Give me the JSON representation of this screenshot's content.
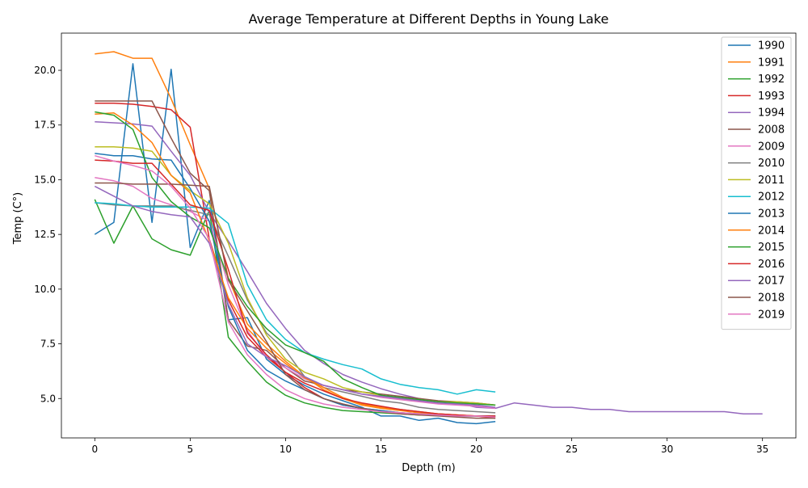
{
  "chart_data": {
    "type": "line",
    "title": "Average Temperature at Different Depths in Young Lake",
    "xlabel": "Depth (m)",
    "ylabel": "Temp (C°)",
    "xlim": [
      -1.75,
      36.75
    ],
    "ylim": [
      3.2,
      21.7
    ],
    "xticks": [
      0,
      5,
      10,
      15,
      20,
      25,
      30,
      35
    ],
    "yticks": [
      5.0,
      7.5,
      10.0,
      12.5,
      15.0,
      17.5,
      20.0
    ],
    "grid": false,
    "legend_position": "top-right",
    "series": [
      {
        "name": "1990",
        "color": "#1f77b4",
        "x": [
          0,
          1,
          2,
          3,
          4,
          5,
          6,
          7,
          8,
          9,
          10,
          11,
          12,
          13,
          14,
          15,
          16,
          17,
          18,
          19,
          20,
          21
        ],
        "y": [
          12.5,
          13.05,
          20.3,
          13.05,
          20.05,
          11.9,
          14.05,
          8.6,
          8.7,
          6.8,
          6.1,
          5.6,
          5.2,
          4.9,
          4.6,
          4.2,
          4.2,
          4.0,
          4.1,
          3.9,
          3.85,
          3.95
        ]
      },
      {
        "name": "1991",
        "color": "#ff7f0e",
        "x": [
          0,
          1,
          2,
          3,
          4,
          5,
          6,
          7,
          8,
          9,
          10,
          11,
          12,
          13,
          14,
          15,
          16,
          17,
          18,
          19,
          20,
          21
        ],
        "y": [
          20.75,
          20.85,
          20.55,
          20.55,
          18.7,
          16.6,
          14.6,
          10.5,
          8.4,
          7.5,
          6.7,
          6.0,
          5.4,
          5.0,
          4.7,
          4.55,
          4.45,
          4.35,
          4.3,
          4.25,
          4.2,
          4.2
        ]
      },
      {
        "name": "1992",
        "color": "#2ca02c",
        "x": [
          0,
          1,
          2,
          3,
          4,
          5,
          6,
          7,
          8,
          9,
          10,
          11,
          12,
          13,
          14,
          15,
          16,
          17,
          18,
          19,
          20,
          21
        ],
        "y": [
          14.1,
          12.1,
          13.8,
          12.3,
          11.8,
          11.55,
          13.6,
          7.8,
          6.7,
          5.75,
          5.15,
          4.8,
          4.6,
          4.45,
          4.4,
          4.35,
          4.3,
          4.25,
          4.25,
          4.2,
          4.2,
          4.2
        ]
      },
      {
        "name": "1993",
        "color": "#d62728",
        "x": [
          0,
          1,
          2,
          3,
          4,
          5,
          6,
          7,
          8,
          9,
          10,
          11,
          12,
          13,
          14,
          15,
          16,
          17,
          18,
          19,
          20,
          21
        ],
        "y": [
          18.5,
          18.5,
          18.45,
          18.35,
          18.2,
          17.4,
          12.3,
          9.5,
          7.8,
          6.9,
          6.2,
          5.5,
          5.0,
          4.7,
          4.55,
          4.45,
          4.35,
          4.3,
          4.25,
          4.2,
          4.2,
          4.1
        ]
      },
      {
        "name": "1994",
        "color": "#9467bd",
        "x": [
          0,
          1,
          2,
          3,
          4,
          5,
          6,
          7,
          8,
          9,
          10,
          11,
          12,
          13,
          14,
          15,
          16,
          17,
          18,
          19,
          20,
          21,
          22,
          23,
          24,
          25,
          26,
          27,
          28,
          29,
          30,
          31,
          32,
          33,
          34,
          35
        ],
        "y": [
          17.65,
          17.6,
          17.55,
          17.45,
          16.3,
          15.2,
          13.5,
          12.2,
          10.8,
          9.35,
          8.2,
          7.2,
          6.6,
          6.1,
          5.75,
          5.45,
          5.2,
          5.0,
          4.85,
          4.8,
          4.6,
          4.55,
          4.8,
          4.7,
          4.6,
          4.6,
          4.5,
          4.5,
          4.4,
          4.4,
          4.4,
          4.4,
          4.4,
          4.4,
          4.3,
          4.3
        ]
      },
      {
        "name": "2008",
        "color": "#8c564b",
        "x": [
          0,
          1,
          2,
          3,
          4,
          5,
          6,
          7,
          8,
          9,
          10,
          11,
          12,
          13,
          14,
          15,
          16,
          17,
          18,
          19,
          20,
          21
        ],
        "y": [
          18.6,
          18.6,
          18.6,
          18.6,
          16.9,
          15.3,
          14.5,
          8.6,
          7.4,
          7.2,
          6.4,
          5.8,
          5.6,
          5.4,
          5.3,
          5.2,
          5.1,
          5.0,
          4.9,
          4.85,
          4.8,
          4.7
        ]
      },
      {
        "name": "2009",
        "color": "#e377c2",
        "x": [
          0,
          1,
          2,
          3,
          4,
          5,
          6,
          7,
          8,
          9,
          10,
          11,
          12,
          13,
          14,
          15,
          16,
          17,
          18,
          19,
          20,
          21
        ],
        "y": [
          15.1,
          14.95,
          14.7,
          14.15,
          13.85,
          13.55,
          13.1,
          10.2,
          8.1,
          6.9,
          6.4,
          5.9,
          5.6,
          5.4,
          5.2,
          5.05,
          4.95,
          4.85,
          4.75,
          4.7,
          4.65,
          4.55
        ]
      },
      {
        "name": "2010",
        "color": "#7f7f7f",
        "x": [
          0,
          1,
          2,
          3,
          4,
          5,
          6,
          7,
          8,
          9,
          10,
          11,
          12,
          13,
          14,
          15,
          16,
          17,
          18,
          19,
          20,
          21
        ],
        "y": [
          13.95,
          13.85,
          13.8,
          13.8,
          13.8,
          13.6,
          13.4,
          11.5,
          9.5,
          8.0,
          7.2,
          6.0,
          5.5,
          5.3,
          5.1,
          4.9,
          4.8,
          4.6,
          4.5,
          4.45,
          4.4,
          4.35
        ]
      },
      {
        "name": "2011",
        "color": "#bcbd22",
        "x": [
          0,
          1,
          2,
          3,
          4,
          5,
          6,
          7,
          8,
          9,
          10,
          11,
          12,
          13,
          14,
          15,
          16,
          17,
          18,
          19,
          20,
          21
        ],
        "y": [
          16.5,
          16.5,
          16.45,
          16.3,
          15.2,
          14.5,
          13.9,
          12.1,
          9.6,
          7.9,
          6.8,
          6.2,
          5.9,
          5.5,
          5.3,
          5.15,
          5.0,
          4.95,
          4.85,
          4.85,
          4.8,
          4.7
        ]
      },
      {
        "name": "2012",
        "color": "#17becf",
        "x": [
          0,
          1,
          2,
          3,
          4,
          5,
          6,
          7,
          8,
          9,
          10,
          11,
          12,
          13,
          14,
          15,
          16,
          17,
          18,
          19,
          20,
          21
        ],
        "y": [
          13.95,
          13.9,
          13.8,
          13.75,
          13.75,
          13.75,
          13.7,
          13.0,
          10.2,
          8.6,
          7.7,
          7.1,
          6.8,
          6.55,
          6.35,
          5.9,
          5.65,
          5.5,
          5.4,
          5.2,
          5.4,
          5.3
        ]
      },
      {
        "name": "2013",
        "color": "#1f77b4",
        "x": [
          0,
          1,
          2,
          3,
          4,
          5,
          6,
          7,
          8,
          9,
          10,
          11,
          12,
          13,
          14,
          15,
          16,
          17,
          18,
          19,
          20,
          21
        ],
        "y": [
          16.2,
          16.1,
          16.1,
          15.95,
          15.9,
          14.6,
          13.1,
          9.2,
          7.2,
          6.3,
          5.8,
          5.4,
          5.0,
          4.7,
          4.55,
          4.45,
          4.35,
          4.3,
          4.25,
          4.2,
          4.2,
          4.2
        ]
      },
      {
        "name": "2014",
        "color": "#ff7f0e",
        "x": [
          0,
          1,
          2,
          3,
          4,
          5,
          6,
          7,
          8,
          9,
          10,
          11,
          12,
          13,
          14,
          15,
          16,
          17,
          18,
          19,
          20,
          21
        ],
        "y": [
          18.0,
          18.05,
          17.5,
          16.7,
          15.2,
          14.4,
          12.2,
          9.6,
          8.2,
          7.3,
          6.6,
          5.95,
          5.5,
          5.05,
          4.75,
          4.6,
          4.5,
          4.4,
          4.3,
          4.25,
          4.2,
          4.15
        ]
      },
      {
        "name": "2015",
        "color": "#2ca02c",
        "x": [
          0,
          1,
          2,
          3,
          4,
          5,
          6,
          7,
          8,
          9,
          10,
          11,
          12,
          13,
          14,
          15,
          16,
          17,
          18,
          19,
          20,
          21
        ],
        "y": [
          18.1,
          17.95,
          17.3,
          15.1,
          14.0,
          13.3,
          12.8,
          10.5,
          9.2,
          8.2,
          7.45,
          7.1,
          6.7,
          5.9,
          5.5,
          5.15,
          5.05,
          4.95,
          4.85,
          4.8,
          4.75,
          4.7
        ]
      },
      {
        "name": "2016",
        "color": "#d62728",
        "x": [
          0,
          1,
          2,
          3,
          4,
          5,
          6,
          7,
          8,
          9,
          10,
          11,
          12,
          13,
          14,
          15,
          16,
          17,
          18,
          19,
          20,
          21
        ],
        "y": [
          15.9,
          15.85,
          15.75,
          15.75,
          14.8,
          13.85,
          13.6,
          10.9,
          8.0,
          7.0,
          6.2,
          5.7,
          5.35,
          5.0,
          4.8,
          4.65,
          4.5,
          4.4,
          4.3,
          4.25,
          4.2,
          4.2
        ]
      },
      {
        "name": "2017",
        "color": "#9467bd",
        "x": [
          0,
          1,
          2,
          3,
          4,
          5,
          6,
          7,
          8,
          9,
          10,
          11,
          12,
          13,
          14,
          15,
          16,
          17,
          18,
          19,
          20,
          21
        ],
        "y": [
          14.7,
          14.25,
          13.8,
          13.55,
          13.4,
          13.3,
          12.1,
          9.3,
          7.5,
          6.9,
          6.5,
          6.0,
          5.6,
          5.4,
          5.2,
          5.1,
          5.0,
          4.9,
          4.8,
          4.75,
          4.7,
          4.6
        ]
      },
      {
        "name": "2018",
        "color": "#8c564b",
        "x": [
          0,
          1,
          2,
          3,
          4,
          5,
          6,
          7,
          8,
          9,
          10,
          11,
          12,
          13,
          14,
          15,
          16,
          17,
          18,
          19,
          20,
          21
        ],
        "y": [
          14.85,
          14.85,
          14.8,
          14.8,
          14.8,
          14.75,
          14.7,
          10.4,
          9.0,
          7.6,
          6.1,
          5.4,
          5.0,
          4.75,
          4.55,
          4.4,
          4.3,
          4.25,
          4.2,
          4.15,
          4.1,
          4.1
        ]
      },
      {
        "name": "2019",
        "color": "#e377c2",
        "x": [
          0,
          1,
          2,
          3,
          4,
          5,
          6,
          7,
          8,
          9,
          10,
          11,
          12,
          13,
          14,
          15,
          16,
          17,
          18,
          19,
          20,
          21
        ],
        "y": [
          16.1,
          15.85,
          15.65,
          15.4,
          14.7,
          13.7,
          12.3,
          8.5,
          7.0,
          6.1,
          5.4,
          5.0,
          4.75,
          4.6,
          4.5,
          4.4,
          4.35,
          4.3,
          4.25,
          4.2,
          4.2,
          4.15
        ]
      }
    ]
  }
}
